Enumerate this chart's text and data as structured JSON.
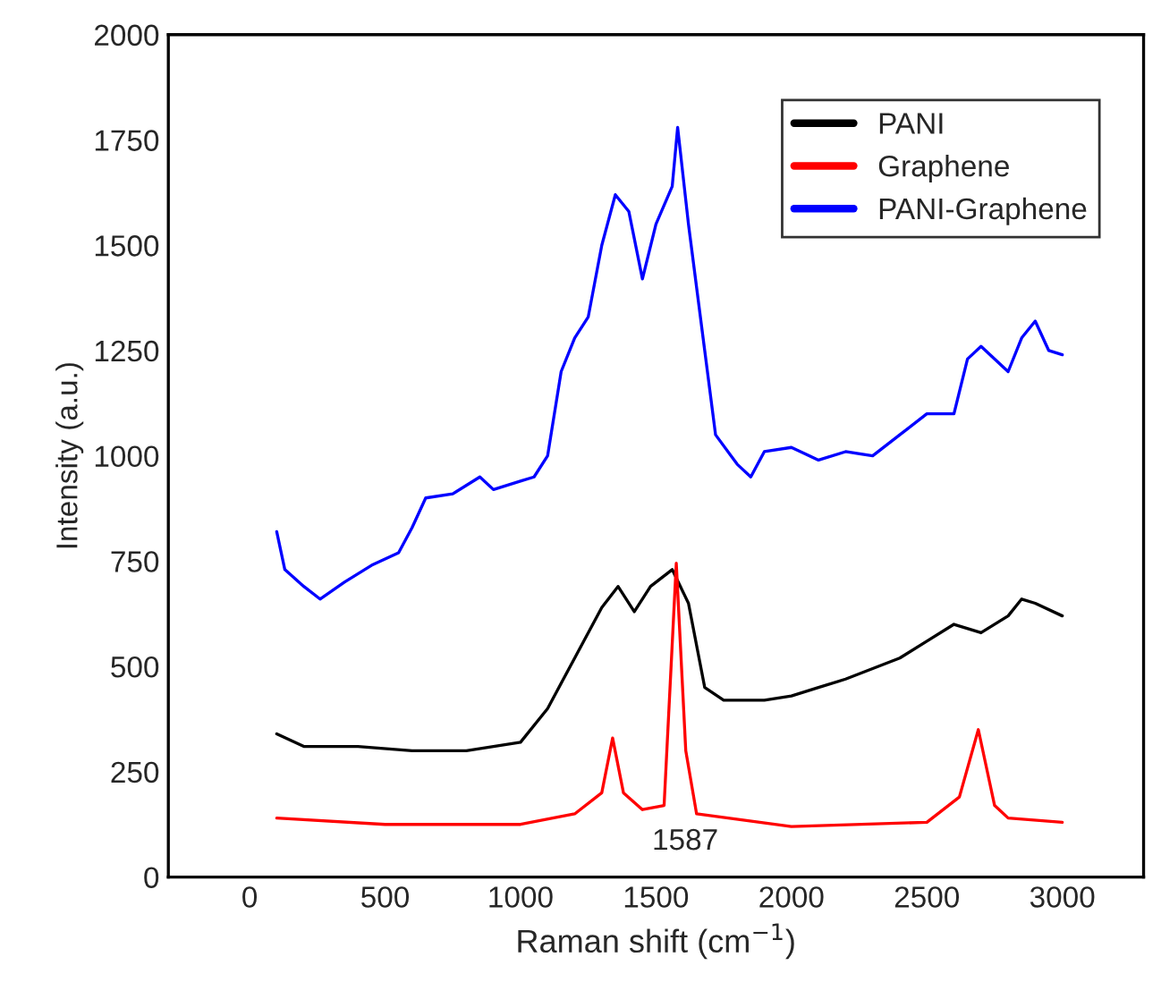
{
  "chart_data": {
    "type": "line",
    "xlabel": "Raman shift (cm$^{−1}$)",
    "ylabel": "Intensity (a.u.)",
    "xlim": [
      -300,
      3300
    ],
    "ylim": [
      0,
      2000
    ],
    "xticks": [
      0,
      500,
      1000,
      1500,
      2000,
      2500,
      3000
    ],
    "yticks": [
      0,
      250,
      500,
      750,
      1000,
      1250,
      1500,
      1750,
      2000
    ],
    "grid": false,
    "legend": "top right",
    "annotations": [
      "1587"
    ],
    "series": [
      {
        "name": "PANI",
        "color": "#000000",
        "x": [
          100,
          200,
          400,
          600,
          800,
          1000,
          1100,
          1200,
          1300,
          1360,
          1420,
          1480,
          1560,
          1620,
          1680,
          1750,
          1900,
          2000,
          2100,
          2200,
          2400,
          2500,
          2600,
          2700,
          2800,
          2850,
          2900,
          3000
        ],
        "values": [
          340,
          310,
          310,
          300,
          300,
          320,
          400,
          520,
          640,
          690,
          630,
          690,
          730,
          650,
          450,
          420,
          420,
          430,
          450,
          470,
          520,
          560,
          600,
          580,
          620,
          660,
          650,
          620
        ]
      },
      {
        "name": "Graphene",
        "color": "#ff0000",
        "x": [
          100,
          500,
          1000,
          1200,
          1300,
          1340,
          1380,
          1450,
          1530,
          1575,
          1610,
          1650,
          2000,
          2500,
          2620,
          2690,
          2750,
          2800,
          3000
        ],
        "values": [
          140,
          125,
          125,
          150,
          200,
          330,
          200,
          160,
          170,
          745,
          300,
          150,
          120,
          130,
          190,
          350,
          170,
          140,
          130
        ]
      },
      {
        "name": "PANI-Graphene",
        "color": "#0000ff",
        "x": [
          100,
          130,
          200,
          260,
          350,
          450,
          550,
          600,
          650,
          750,
          850,
          900,
          1000,
          1050,
          1100,
          1150,
          1200,
          1250,
          1300,
          1350,
          1400,
          1450,
          1500,
          1560,
          1580,
          1620,
          1680,
          1720,
          1800,
          1850,
          1900,
          2000,
          2100,
          2200,
          2300,
          2400,
          2500,
          2600,
          2650,
          2700,
          2800,
          2850,
          2900,
          2950,
          3000
        ],
        "values": [
          820,
          730,
          690,
          660,
          700,
          740,
          770,
          830,
          900,
          910,
          950,
          920,
          940,
          950,
          1000,
          1200,
          1280,
          1330,
          1500,
          1620,
          1580,
          1420,
          1550,
          1640,
          1780,
          1550,
          1250,
          1050,
          980,
          950,
          1010,
          1020,
          990,
          1010,
          1000,
          1050,
          1100,
          1100,
          1230,
          1260,
          1200,
          1280,
          1320,
          1250,
          1240
        ]
      }
    ]
  }
}
